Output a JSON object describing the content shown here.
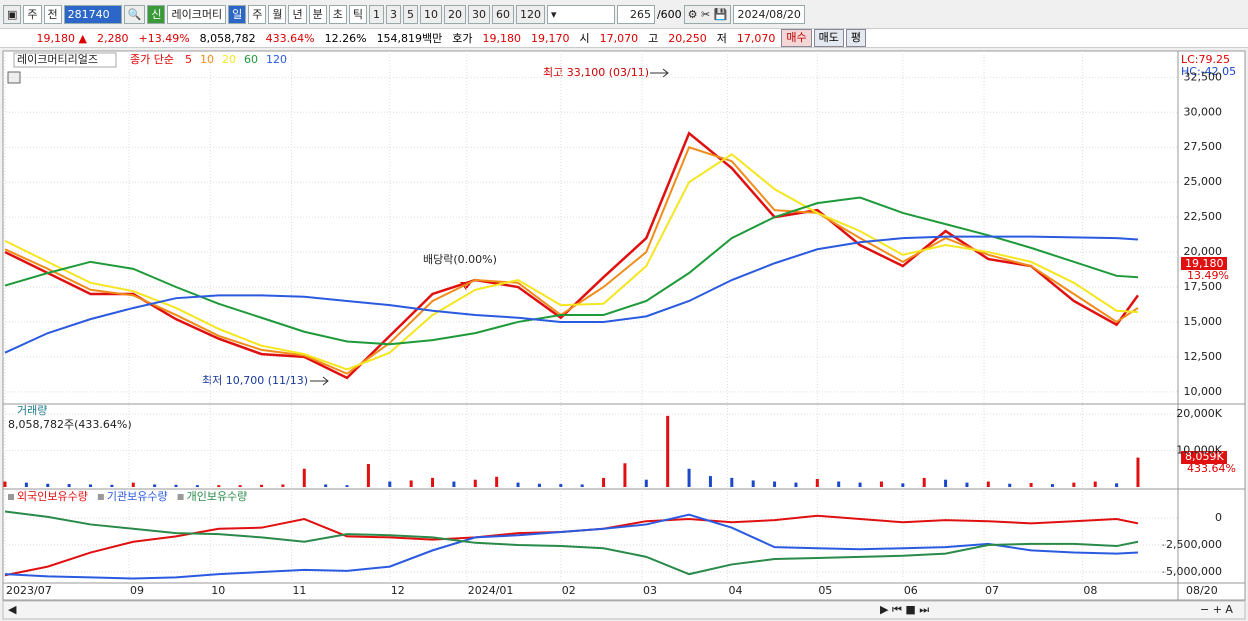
{
  "toolbar": {
    "items": [
      "주",
      "전",
      "281740",
      "신",
      "레이크머티",
      "일",
      "주",
      "월",
      "년",
      "분",
      "초",
      "틱",
      "1",
      "3",
      "5",
      "10",
      "20",
      "30",
      "60",
      "120",
      "265",
      "/600",
      "2024/08/20"
    ]
  },
  "quote": {
    "items": [
      "19,180 ▲",
      "2,280",
      "+13.49%",
      "8,058,782",
      "433.64%",
      "12.26%",
      "154,819백만",
      "호가",
      "19,180",
      "19,170",
      "시",
      "17,070",
      "고",
      "20,250",
      "저",
      "17,070",
      "매수",
      "매도",
      "평"
    ]
  },
  "chart_data": [
    {
      "type": "line",
      "name": "레이크머티리얼즈",
      "legend_title": "종가 단순",
      "x": [
        0,
        10,
        20,
        30,
        40,
        50,
        60,
        70,
        80,
        90,
        100,
        110,
        120,
        130,
        140,
        150,
        160,
        170,
        180,
        190,
        200,
        210,
        220,
        230,
        240,
        250,
        260,
        265
      ],
      "xlim": [
        0,
        276
      ],
      "ylim": [
        9200,
        34100
      ],
      "yticks": [
        {
          "value": 10000,
          "label": "10,000"
        },
        {
          "value": 12500,
          "label": "12,500"
        },
        {
          "value": 15000,
          "label": "15,000"
        },
        {
          "value": 17500,
          "label": "17,500"
        },
        {
          "value": 20000,
          "label": "20,000"
        },
        {
          "value": 22500,
          "label": "22,500"
        },
        {
          "value": 25000,
          "label": "25,000"
        },
        {
          "value": 27500,
          "label": "27,500"
        },
        {
          "value": 30000,
          "label": "30,000"
        },
        {
          "value": 32500,
          "label": "32,500"
        }
      ],
      "grid": true,
      "series": [
        {
          "name": "5",
          "color": "#e01010",
          "values": [
            20000,
            18500,
            17000,
            17000,
            15200,
            13800,
            12700,
            12500,
            11000,
            14000,
            17000,
            18000,
            17500,
            15300,
            18200,
            21000,
            28500,
            26000,
            22500,
            23000,
            20500,
            19000,
            21500,
            19500,
            19000,
            16500,
            14800,
            16900
          ]
        },
        {
          "name": "10",
          "color": "#f08c1a",
          "values": [
            20200,
            18800,
            17300,
            16900,
            15500,
            14000,
            13000,
            12600,
            11300,
            13500,
            16500,
            18000,
            17800,
            15500,
            17500,
            20000,
            27500,
            26500,
            23000,
            22800,
            21000,
            19300,
            21000,
            19800,
            19000,
            17000,
            15000,
            16000
          ]
        },
        {
          "name": "20",
          "color": "#f5e620",
          "values": [
            20800,
            19300,
            17800,
            17200,
            16000,
            14500,
            13300,
            12700,
            11600,
            12800,
            15500,
            17300,
            18000,
            16200,
            16300,
            19000,
            25000,
            27000,
            24500,
            22800,
            21500,
            19800,
            20500,
            20000,
            19300,
            17800,
            15800,
            15700
          ]
        },
        {
          "name": "60",
          "color": "#1e9a3a",
          "values": [
            17600,
            18500,
            19300,
            18800,
            17500,
            16300,
            15300,
            14300,
            13600,
            13400,
            13700,
            14200,
            15000,
            15500,
            15500,
            16500,
            18500,
            21000,
            22500,
            23500,
            23900,
            22800,
            22000,
            21200,
            20300,
            19300,
            18300,
            18200
          ]
        },
        {
          "name": "120",
          "color": "#2a5ae0",
          "values": [
            12800,
            14200,
            15200,
            16000,
            16700,
            16900,
            16900,
            16800,
            16500,
            16200,
            15800,
            15500,
            15300,
            15000,
            15000,
            15400,
            16500,
            18000,
            19200,
            20200,
            20700,
            21000,
            21100,
            21100,
            21100,
            21050,
            21000,
            20900
          ]
        }
      ],
      "annotations": [
        "최고 33,100 (03/11)",
        "최저 10,700 (11/13)",
        "배당락(0.00%)"
      ],
      "right_labels": [
        "LC:79.25",
        "HC:-42.05",
        "19,180",
        "13.49%"
      ]
    },
    {
      "type": "bar",
      "title": "거래량",
      "subtitle": "8,058,782주(433.64%)",
      "x": [
        0,
        5,
        10,
        15,
        20,
        25,
        30,
        35,
        40,
        45,
        50,
        55,
        60,
        65,
        70,
        75,
        80,
        85,
        90,
        95,
        100,
        105,
        110,
        115,
        120,
        125,
        130,
        135,
        140,
        145,
        150,
        155,
        160,
        165,
        170,
        175,
        180,
        185,
        190,
        195,
        200,
        205,
        210,
        215,
        220,
        225,
        230,
        235,
        240,
        245,
        250,
        255,
        260,
        265
      ],
      "xlim": [
        0,
        276
      ],
      "ylim": [
        0,
        22200
      ],
      "yticks": [
        {
          "value": 10000,
          "label": "10,000K"
        },
        {
          "value": 20000,
          "label": "20,000K"
        }
      ],
      "up_color": "#e01010",
      "down_color": "#1a48c8",
      "values": [
        1500,
        1200,
        900,
        800,
        700,
        600,
        1200,
        700,
        600,
        500,
        500,
        500,
        600,
        700,
        5000,
        700,
        500,
        6300,
        1500,
        1800,
        2500,
        1500,
        2000,
        2800,
        1200,
        900,
        800,
        700,
        2500,
        6500,
        2000,
        19500,
        5000,
        3000,
        2500,
        1800,
        1500,
        1200,
        2200,
        1500,
        1200,
        1500,
        1000,
        2500,
        2000,
        1200,
        1500,
        900,
        1100,
        800,
        1200,
        1500,
        1000,
        8059
      ],
      "right_labels": [
        "8,059K",
        "433.64%"
      ]
    },
    {
      "type": "line",
      "x": [
        0,
        10,
        20,
        30,
        40,
        50,
        60,
        70,
        80,
        90,
        100,
        110,
        120,
        130,
        140,
        150,
        160,
        170,
        180,
        190,
        200,
        210,
        220,
        230,
        240,
        250,
        260,
        265
      ],
      "xlim": [
        0,
        276
      ],
      "ylim": [
        -5740000,
        2400000
      ],
      "xticks": [
        {
          "value": 0,
          "label": "2023/07"
        },
        {
          "value": 29,
          "label": "09"
        },
        {
          "value": 48,
          "label": "10"
        },
        {
          "value": 67,
          "label": "11"
        },
        {
          "value": 90,
          "label": "12"
        },
        {
          "value": 108,
          "label": "2024/01"
        },
        {
          "value": 130,
          "label": "02"
        },
        {
          "value": 149,
          "label": "03"
        },
        {
          "value": 169,
          "label": "04"
        },
        {
          "value": 190,
          "label": "05"
        },
        {
          "value": 210,
          "label": "06"
        },
        {
          "value": 229,
          "label": "07"
        },
        {
          "value": 252,
          "label": "08"
        },
        {
          "value": 276,
          "label": "08/20"
        }
      ],
      "yticks": [
        0,
        {
          "value": -2500000,
          "label": "-2,500,000"
        },
        {
          "value": -5000000,
          "label": "-5,000,000"
        }
      ],
      "series": [
        {
          "name": "외국인보유수량",
          "color": "#e01010",
          "values": [
            -5300000,
            -4500000,
            -3200000,
            -2200000,
            -1700000,
            -1000000,
            -900000,
            -100000,
            -1700000,
            -1800000,
            -2000000,
            -1800000,
            -1400000,
            -1300000,
            -1000000,
            -300000,
            -100000,
            -400000,
            -200000,
            200000,
            -100000,
            -400000,
            -200000,
            -300000,
            -500000,
            -300000,
            -100000,
            -500000
          ]
        },
        {
          "name": "기관보유수량",
          "color": "#2a5ae0",
          "values": [
            -5200000,
            -5400000,
            -5500000,
            -5600000,
            -5500000,
            -5200000,
            -5000000,
            -4800000,
            -4900000,
            -4500000,
            -3000000,
            -1800000,
            -1600000,
            -1300000,
            -1000000,
            -600000,
            300000,
            -900000,
            -2700000,
            -2800000,
            -2900000,
            -2800000,
            -2700000,
            -2400000,
            -3000000,
            -3200000,
            -3300000,
            -3200000
          ]
        },
        {
          "name": "개인보유수량",
          "color": "#2a8a4a",
          "values": [
            600000,
            100000,
            -600000,
            -1000000,
            -1400000,
            -1500000,
            -1800000,
            -2200000,
            -1500000,
            -1600000,
            -1800000,
            -2300000,
            -2500000,
            -2600000,
            -2800000,
            -3600000,
            -5200000,
            -4300000,
            -3800000,
            -3700000,
            -3600000,
            -3500000,
            -3300000,
            -2500000,
            -2400000,
            -2400000,
            -2600000,
            -2200000
          ]
        }
      ]
    }
  ]
}
